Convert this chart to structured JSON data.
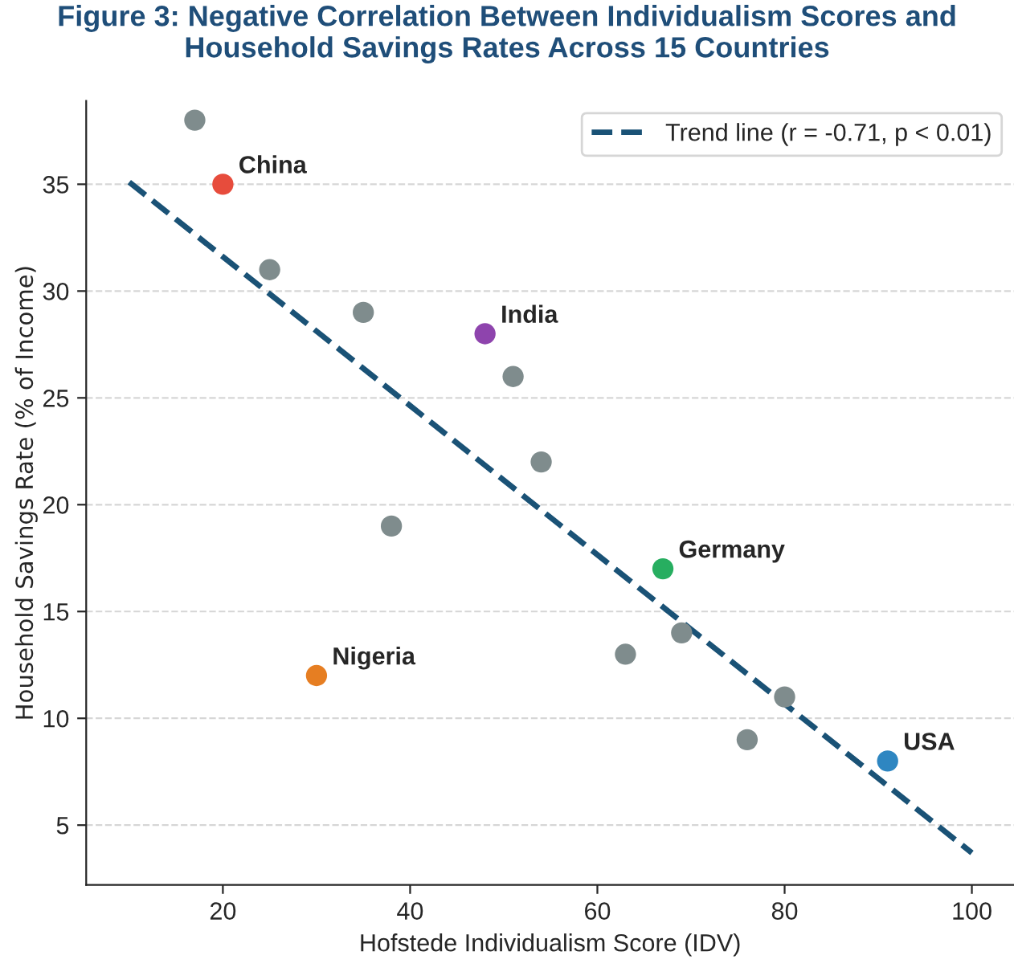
{
  "chart_data": {
    "type": "scatter",
    "title": "Figure 3: Negative Correlation Between Individualism Scores and\nHousehold Savings Rates Across 15 Countries",
    "xlabel": "Hofstede Individualism Score (IDV)",
    "ylabel": "Household Savings Rate (% of Income)",
    "series": [
      {
        "x": [
          17,
          25,
          35,
          51,
          54,
          38,
          63,
          69,
          80,
          76,
          20,
          48,
          67,
          30,
          91
        ],
        "values": [
          38,
          31,
          29,
          26,
          22,
          19,
          13,
          14,
          11,
          9,
          35,
          28,
          17,
          12,
          8
        ],
        "colors": [
          "#7f8c8d",
          "#7f8c8d",
          "#7f8c8d",
          "#7f8c8d",
          "#7f8c8d",
          "#7f8c8d",
          "#7f8c8d",
          "#7f8c8d",
          "#7f8c8d",
          "#7f8c8d",
          "#e74c3c",
          "#8e44ad",
          "#27ae60",
          "#e67e22",
          "#2e86c1"
        ],
        "marker": "circle"
      },
      {
        "type": "line",
        "name": "Trend line (r = -0.71, p < 0.01)",
        "color": "#1a5276",
        "x": [
          10,
          100
        ],
        "values": [
          35.1,
          3.7
        ],
        "line_style": "dashed",
        "marker": "none"
      }
    ],
    "annotations": [
      {
        "text": "China",
        "x": 20,
        "y": 35
      },
      {
        "text": "India",
        "x": 48,
        "y": 28
      },
      {
        "text": "Germany",
        "x": 67,
        "y": 17
      },
      {
        "text": "Nigeria",
        "x": 30,
        "y": 12
      },
      {
        "text": "USA",
        "x": 91,
        "y": 8
      }
    ],
    "xlim": [
      5.4,
      104.5
    ],
    "ylim": [
      2.2,
      38.9
    ],
    "xticks": [
      20,
      40,
      60,
      80,
      100
    ],
    "yticks": [
      5,
      10,
      15,
      20,
      25,
      30,
      35
    ],
    "grid": "y",
    "legend": "top right"
  }
}
